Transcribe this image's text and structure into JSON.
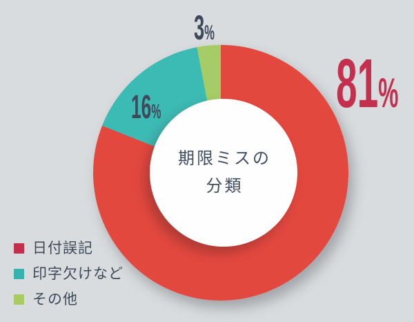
{
  "background_color": "#d9dcde",
  "chart_data": {
    "type": "pie",
    "donut": true,
    "title": "期限ミスの分類",
    "labels": [
      "日付誤記",
      "印字欠けなど",
      "その他"
    ],
    "values": [
      81,
      16,
      3
    ],
    "unit": "%",
    "slice_colors": [
      "#e3483f",
      "#3cbab4",
      "#a5cc67"
    ],
    "start_angle_deg": 0,
    "direction": "clockwise",
    "legend_position": "bottom-left"
  },
  "center_label": {
    "line1": "期限ミスの",
    "line2": "分類"
  },
  "slice_labels": {
    "red": {
      "value": "81",
      "unit": "%"
    },
    "teal": {
      "value": "16",
      "unit": "%"
    },
    "green": {
      "value": "3",
      "unit": "%"
    }
  },
  "legend": {
    "items": [
      {
        "label": "日付誤記",
        "color": "#c42f4d"
      },
      {
        "label": "印字欠けなど",
        "color": "#36b3ae"
      },
      {
        "label": "その他",
        "color": "#a8cc62"
      }
    ]
  },
  "colors": {
    "accent_crimson": "#c42f4d",
    "slate_text": "#3e4a5c",
    "center_text": "#414e63",
    "hole_white": "#fefefe"
  }
}
